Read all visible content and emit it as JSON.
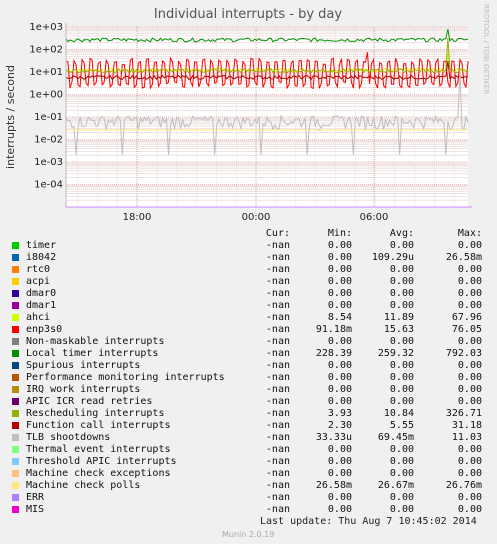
{
  "chart_data": {
    "type": "line",
    "title": "Individual interrupts - by day",
    "ylabel": "interrupts / second",
    "y_scale": "log",
    "ylim": [
      1e-05,
      1000
    ],
    "y_ticks": [
      "1e+03",
      "1e+02",
      "1e+01",
      "1e+00",
      "1e-01",
      "1e-02",
      "1e-03",
      "1e-04"
    ],
    "x_ticks": [
      "18:00",
      "00:00",
      "06:00"
    ],
    "grid": true,
    "watermark": "RRDTOOL / TOBI OETIKER",
    "legend_headers": [
      "Cur:",
      "Min:",
      "Avg:",
      "Max:"
    ],
    "series": [
      {
        "name": "timer",
        "color": "#00cc00",
        "cur": "-nan",
        "min": "0.00",
        "avg": "0.00",
        "max": "0.00"
      },
      {
        "name": "i8042",
        "color": "#0066b3",
        "cur": "-nan",
        "min": "0.00",
        "avg": "109.29u",
        "max": "26.58m"
      },
      {
        "name": "rtc0",
        "color": "#ff8000",
        "cur": "-nan",
        "min": "0.00",
        "avg": "0.00",
        "max": "0.00"
      },
      {
        "name": "acpi",
        "color": "#ffcc00",
        "cur": "-nan",
        "min": "0.00",
        "avg": "0.00",
        "max": "0.00"
      },
      {
        "name": "dmar0",
        "color": "#330099",
        "cur": "-nan",
        "min": "0.00",
        "avg": "0.00",
        "max": "0.00"
      },
      {
        "name": "dmar1",
        "color": "#990099",
        "cur": "-nan",
        "min": "0.00",
        "avg": "0.00",
        "max": "0.00"
      },
      {
        "name": "ahci",
        "color": "#ccff00",
        "cur": "-nan",
        "min": "8.54",
        "avg": "11.89",
        "max": "67.96"
      },
      {
        "name": "enp3s0",
        "color": "#ff0000",
        "cur": "-nan",
        "min": "91.18m",
        "avg": "15.63",
        "max": "76.05"
      },
      {
        "name": "Non-maskable interrupts",
        "color": "#808080",
        "cur": "-nan",
        "min": "0.00",
        "avg": "0.00",
        "max": "0.00"
      },
      {
        "name": "Local timer interrupts",
        "color": "#008f00",
        "cur": "-nan",
        "min": "228.39",
        "avg": "259.32",
        "max": "792.03"
      },
      {
        "name": "Spurious interrupts",
        "color": "#00487d",
        "cur": "-nan",
        "min": "0.00",
        "avg": "0.00",
        "max": "0.00"
      },
      {
        "name": "Performance monitoring interrupts",
        "color": "#b35a00",
        "cur": "-nan",
        "min": "0.00",
        "avg": "0.00",
        "max": "0.00"
      },
      {
        "name": "IRQ work interrupts",
        "color": "#b38f00",
        "cur": "-nan",
        "min": "0.00",
        "avg": "0.00",
        "max": "0.00"
      },
      {
        "name": "APIC ICR read retries",
        "color": "#6b006b",
        "cur": "-nan",
        "min": "0.00",
        "avg": "0.00",
        "max": "0.00"
      },
      {
        "name": "Rescheduling interrupts",
        "color": "#8fb300",
        "cur": "-nan",
        "min": "3.93",
        "avg": "10.84",
        "max": "326.71"
      },
      {
        "name": "Function call interrupts",
        "color": "#b30000",
        "cur": "-nan",
        "min": "2.30",
        "avg": "5.55",
        "max": "31.18"
      },
      {
        "name": "TLB shootdowns",
        "color": "#bebebe",
        "cur": "-nan",
        "min": "33.33u",
        "avg": "69.45m",
        "max": "11.03"
      },
      {
        "name": "Thermal event interrupts",
        "color": "#80ff80",
        "cur": "-nan",
        "min": "0.00",
        "avg": "0.00",
        "max": "0.00"
      },
      {
        "name": "Threshold APIC interrupts",
        "color": "#80c9ff",
        "cur": "-nan",
        "min": "0.00",
        "avg": "0.00",
        "max": "0.00"
      },
      {
        "name": "Machine check exceptions",
        "color": "#ffc080",
        "cur": "-nan",
        "min": "0.00",
        "avg": "0.00",
        "max": "0.00"
      },
      {
        "name": "Machine check polls",
        "color": "#ffe680",
        "cur": "-nan",
        "min": "26.58m",
        "avg": "26.67m",
        "max": "26.76m"
      },
      {
        "name": "ERR",
        "color": "#aa80ff",
        "cur": "-nan",
        "min": "0.00",
        "avg": "0.00",
        "max": "0.00"
      },
      {
        "name": "MIS",
        "color": "#ee00cc",
        "cur": "-nan",
        "min": "0.00",
        "avg": "0.00",
        "max": "0.00"
      }
    ]
  },
  "footer": {
    "last_update": "Last update:  Thu Aug  7 10:45:02 2014",
    "version": "Munin 2.0.19"
  }
}
